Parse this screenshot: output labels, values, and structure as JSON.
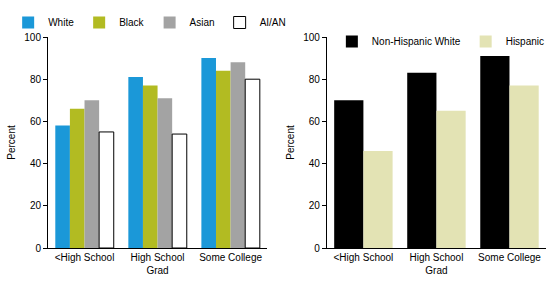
{
  "chart_data": [
    {
      "type": "bar",
      "categories": [
        "<High School",
        "High School Grad",
        "Some College"
      ],
      "series": [
        {
          "name": "White",
          "color": "#1b98d8",
          "values": [
            58,
            81,
            90
          ]
        },
        {
          "name": "Black",
          "color": "#b2bb22",
          "values": [
            66,
            77,
            84
          ]
        },
        {
          "name": "Asian",
          "color": "#a3a3a3",
          "values": [
            70,
            71,
            88
          ]
        },
        {
          "name": "AI/AN",
          "color": "#ffffff",
          "values": [
            55,
            54,
            80
          ]
        }
      ],
      "ylabel": "Percent",
      "ylim": [
        0,
        100
      ],
      "yticks": [
        0,
        20,
        40,
        60,
        80,
        100
      ],
      "grid": false,
      "legend": "top-left"
    },
    {
      "type": "bar",
      "categories": [
        "<High School",
        "High School Grad",
        "Some College"
      ],
      "series": [
        {
          "name": "Non-Hispanic White",
          "color": "#000000",
          "values": [
            70,
            83,
            91
          ]
        },
        {
          "name": "Hispanic",
          "color": "#e3e3b4",
          "values": [
            46,
            65,
            77
          ]
        }
      ],
      "ylabel": "Percent",
      "ylim": [
        0,
        100
      ],
      "yticks": [
        0,
        20,
        40,
        60,
        80,
        100
      ],
      "grid": false,
      "legend": "top-left"
    }
  ]
}
